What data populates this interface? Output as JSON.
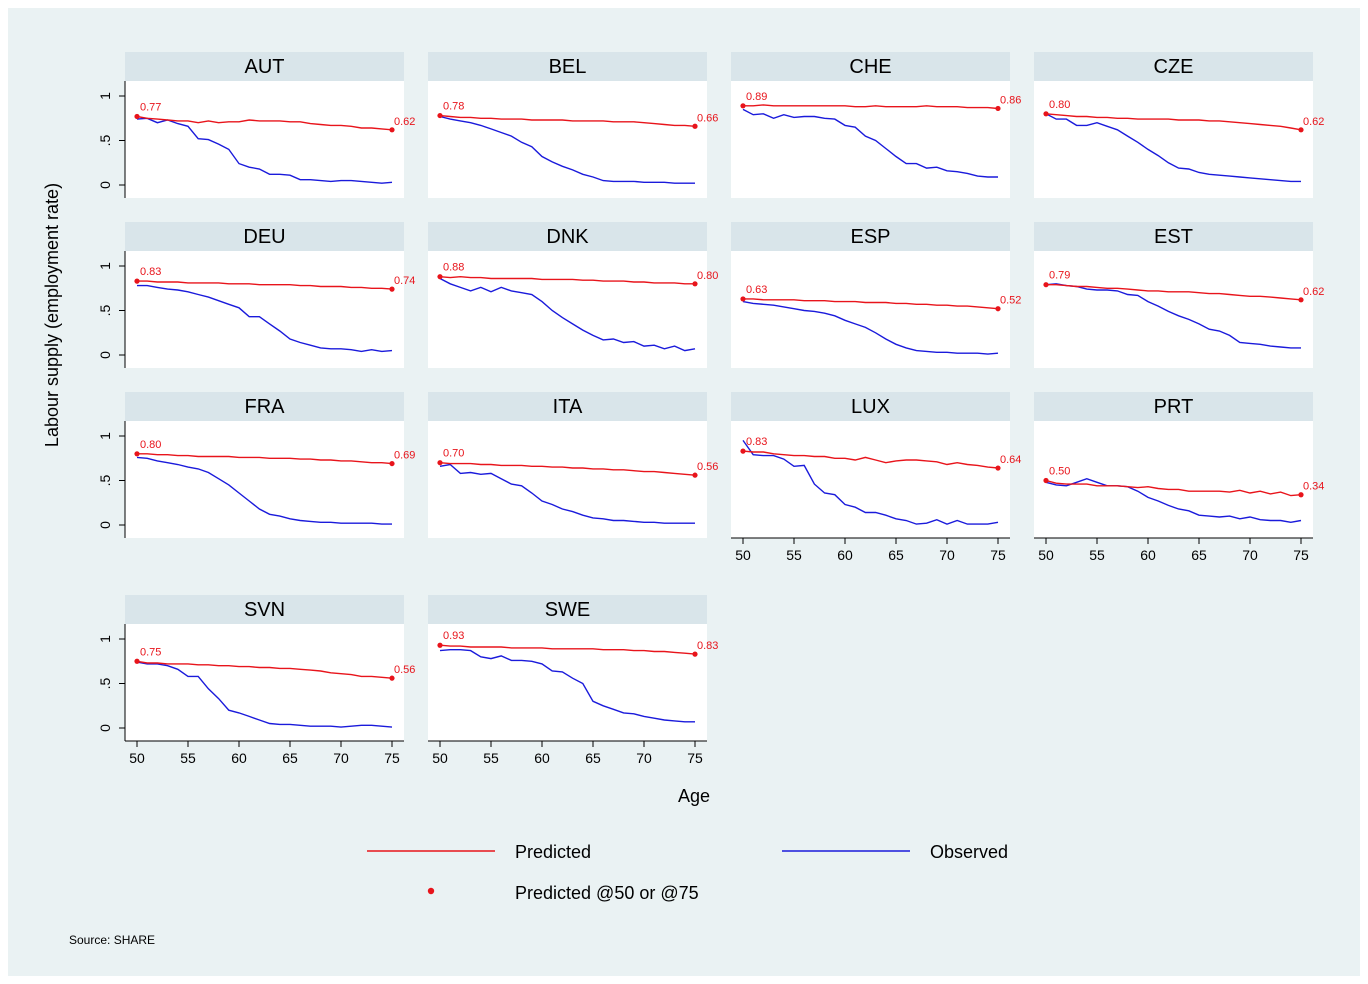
{
  "chart_data": {
    "type": "line",
    "ylabel": "Labour supply (employment rate)",
    "xlabel": "Age",
    "source_note": "Source: SHARE",
    "xlim": [
      50,
      75
    ],
    "ylim": [
      0,
      1
    ],
    "xticks": [
      50,
      55,
      60,
      65,
      70,
      75
    ],
    "yticks": [
      0,
      0.5,
      1
    ],
    "ytick_labels": [
      "0",
      ".5",
      "1"
    ],
    "grid": false,
    "legend": {
      "placement": "bottom",
      "entries": [
        {
          "label": "Predicted",
          "kind": "line",
          "color": "#e8141b"
        },
        {
          "label": "Observed",
          "kind": "line",
          "color": "#1a1adb"
        },
        {
          "label": "Predicted @50 or @75",
          "kind": "marker",
          "color": "#e8141b"
        }
      ]
    },
    "colors": {
      "predicted": "#e8141b",
      "observed": "#1a1adb",
      "strip": "#d9e5ea",
      "background": "#eaf2f3"
    },
    "x": [
      50,
      51,
      52,
      53,
      54,
      55,
      56,
      57,
      58,
      59,
      60,
      61,
      62,
      63,
      64,
      65,
      66,
      67,
      68,
      69,
      70,
      71,
      72,
      73,
      74,
      75
    ],
    "panels": [
      {
        "name": "AUT",
        "label50": "0.77",
        "label75": "0.62",
        "predicted": [
          0.77,
          0.75,
          0.74,
          0.73,
          0.72,
          0.72,
          0.7,
          0.72,
          0.7,
          0.71,
          0.71,
          0.73,
          0.72,
          0.72,
          0.72,
          0.71,
          0.71,
          0.69,
          0.68,
          0.67,
          0.67,
          0.66,
          0.64,
          0.64,
          0.63,
          0.62
        ],
        "observed": [
          0.74,
          0.75,
          0.7,
          0.73,
          0.69,
          0.66,
          0.52,
          0.51,
          0.46,
          0.4,
          0.24,
          0.2,
          0.18,
          0.12,
          0.12,
          0.11,
          0.06,
          0.06,
          0.05,
          0.04,
          0.05,
          0.05,
          0.04,
          0.03,
          0.02,
          0.03
        ]
      },
      {
        "name": "BEL",
        "label50": "0.78",
        "label75": "0.66",
        "predicted": [
          0.78,
          0.77,
          0.76,
          0.76,
          0.75,
          0.75,
          0.74,
          0.74,
          0.74,
          0.73,
          0.73,
          0.73,
          0.73,
          0.72,
          0.72,
          0.72,
          0.72,
          0.71,
          0.71,
          0.71,
          0.7,
          0.69,
          0.68,
          0.67,
          0.67,
          0.66
        ],
        "observed": [
          0.77,
          0.74,
          0.72,
          0.7,
          0.67,
          0.63,
          0.59,
          0.55,
          0.48,
          0.43,
          0.32,
          0.26,
          0.21,
          0.17,
          0.12,
          0.09,
          0.05,
          0.04,
          0.04,
          0.04,
          0.03,
          0.03,
          0.03,
          0.02,
          0.02,
          0.02
        ]
      },
      {
        "name": "CHE",
        "label50": "0.89",
        "label75": "0.86",
        "predicted": [
          0.89,
          0.89,
          0.9,
          0.89,
          0.89,
          0.89,
          0.89,
          0.89,
          0.89,
          0.89,
          0.89,
          0.88,
          0.88,
          0.89,
          0.88,
          0.88,
          0.88,
          0.88,
          0.89,
          0.88,
          0.88,
          0.88,
          0.87,
          0.87,
          0.87,
          0.86
        ],
        "observed": [
          0.85,
          0.79,
          0.8,
          0.75,
          0.79,
          0.76,
          0.77,
          0.77,
          0.75,
          0.74,
          0.67,
          0.65,
          0.55,
          0.5,
          0.41,
          0.32,
          0.24,
          0.24,
          0.19,
          0.2,
          0.16,
          0.15,
          0.13,
          0.1,
          0.09,
          0.09
        ]
      },
      {
        "name": "CZE",
        "label50": "0.80",
        "label75": "0.62",
        "predicted": [
          0.8,
          0.79,
          0.78,
          0.77,
          0.77,
          0.76,
          0.76,
          0.75,
          0.75,
          0.74,
          0.74,
          0.74,
          0.74,
          0.73,
          0.73,
          0.73,
          0.72,
          0.72,
          0.71,
          0.7,
          0.69,
          0.68,
          0.67,
          0.66,
          0.64,
          0.62
        ],
        "observed": [
          0.8,
          0.74,
          0.74,
          0.67,
          0.67,
          0.7,
          0.66,
          0.62,
          0.55,
          0.48,
          0.4,
          0.33,
          0.25,
          0.19,
          0.18,
          0.14,
          0.12,
          0.11,
          0.1,
          0.09,
          0.08,
          0.07,
          0.06,
          0.05,
          0.04,
          0.04
        ]
      },
      {
        "name": "DEU",
        "label50": "0.83",
        "label75": "0.74",
        "predicted": [
          0.83,
          0.83,
          0.82,
          0.82,
          0.82,
          0.81,
          0.81,
          0.81,
          0.81,
          0.8,
          0.8,
          0.8,
          0.79,
          0.79,
          0.79,
          0.79,
          0.78,
          0.78,
          0.77,
          0.77,
          0.77,
          0.76,
          0.76,
          0.75,
          0.75,
          0.74
        ],
        "observed": [
          0.78,
          0.78,
          0.76,
          0.74,
          0.73,
          0.71,
          0.68,
          0.65,
          0.61,
          0.57,
          0.53,
          0.43,
          0.43,
          0.35,
          0.27,
          0.18,
          0.14,
          0.11,
          0.08,
          0.07,
          0.07,
          0.06,
          0.04,
          0.06,
          0.04,
          0.05
        ]
      },
      {
        "name": "DNK",
        "label50": "0.88",
        "label75": "0.80",
        "predicted": [
          0.88,
          0.87,
          0.88,
          0.87,
          0.87,
          0.86,
          0.86,
          0.86,
          0.86,
          0.86,
          0.85,
          0.85,
          0.85,
          0.85,
          0.84,
          0.84,
          0.83,
          0.83,
          0.83,
          0.82,
          0.82,
          0.81,
          0.81,
          0.81,
          0.8,
          0.8
        ],
        "observed": [
          0.86,
          0.8,
          0.76,
          0.72,
          0.76,
          0.71,
          0.76,
          0.72,
          0.7,
          0.68,
          0.6,
          0.5,
          0.42,
          0.35,
          0.28,
          0.22,
          0.17,
          0.18,
          0.14,
          0.15,
          0.1,
          0.11,
          0.07,
          0.1,
          0.05,
          0.07
        ]
      },
      {
        "name": "ESP",
        "label50": "0.63",
        "label75": "0.52",
        "predicted": [
          0.63,
          0.63,
          0.62,
          0.62,
          0.62,
          0.62,
          0.61,
          0.61,
          0.61,
          0.6,
          0.6,
          0.6,
          0.59,
          0.59,
          0.59,
          0.58,
          0.58,
          0.57,
          0.57,
          0.56,
          0.56,
          0.55,
          0.55,
          0.54,
          0.53,
          0.52
        ],
        "observed": [
          0.6,
          0.58,
          0.57,
          0.56,
          0.54,
          0.52,
          0.5,
          0.49,
          0.47,
          0.44,
          0.39,
          0.35,
          0.31,
          0.25,
          0.18,
          0.12,
          0.08,
          0.05,
          0.04,
          0.03,
          0.03,
          0.02,
          0.02,
          0.02,
          0.01,
          0.02
        ]
      },
      {
        "name": "EST",
        "label50": "0.79",
        "label75": "0.62",
        "predicted": [
          0.79,
          0.79,
          0.78,
          0.77,
          0.77,
          0.76,
          0.75,
          0.75,
          0.74,
          0.73,
          0.72,
          0.72,
          0.71,
          0.71,
          0.71,
          0.7,
          0.69,
          0.69,
          0.68,
          0.67,
          0.66,
          0.66,
          0.65,
          0.64,
          0.63,
          0.62
        ],
        "observed": [
          0.79,
          0.8,
          0.78,
          0.77,
          0.74,
          0.73,
          0.73,
          0.72,
          0.68,
          0.67,
          0.6,
          0.55,
          0.49,
          0.44,
          0.4,
          0.35,
          0.29,
          0.27,
          0.22,
          0.14,
          0.13,
          0.12,
          0.1,
          0.09,
          0.08,
          0.08
        ]
      },
      {
        "name": "FRA",
        "label50": "0.80",
        "label75": "0.69",
        "predicted": [
          0.8,
          0.8,
          0.79,
          0.79,
          0.78,
          0.78,
          0.77,
          0.77,
          0.77,
          0.77,
          0.76,
          0.76,
          0.76,
          0.75,
          0.75,
          0.75,
          0.74,
          0.74,
          0.73,
          0.73,
          0.72,
          0.72,
          0.71,
          0.7,
          0.7,
          0.69
        ],
        "observed": [
          0.76,
          0.75,
          0.72,
          0.7,
          0.68,
          0.65,
          0.63,
          0.59,
          0.52,
          0.45,
          0.36,
          0.27,
          0.18,
          0.12,
          0.1,
          0.07,
          0.05,
          0.04,
          0.03,
          0.03,
          0.02,
          0.02,
          0.02,
          0.02,
          0.01,
          0.01
        ]
      },
      {
        "name": "ITA",
        "label50": "0.70",
        "label75": "0.56",
        "predicted": [
          0.7,
          0.69,
          0.69,
          0.69,
          0.68,
          0.68,
          0.67,
          0.67,
          0.67,
          0.66,
          0.66,
          0.65,
          0.65,
          0.64,
          0.64,
          0.63,
          0.63,
          0.62,
          0.62,
          0.61,
          0.6,
          0.6,
          0.59,
          0.58,
          0.57,
          0.56
        ],
        "observed": [
          0.66,
          0.68,
          0.58,
          0.59,
          0.57,
          0.58,
          0.52,
          0.46,
          0.44,
          0.36,
          0.27,
          0.23,
          0.18,
          0.15,
          0.11,
          0.08,
          0.07,
          0.05,
          0.05,
          0.04,
          0.03,
          0.03,
          0.02,
          0.02,
          0.02,
          0.02
        ]
      },
      {
        "name": "LUX",
        "label50": "0.83",
        "label75": "0.64",
        "predicted": [
          0.83,
          0.82,
          0.82,
          0.8,
          0.79,
          0.78,
          0.78,
          0.77,
          0.77,
          0.75,
          0.75,
          0.73,
          0.76,
          0.73,
          0.7,
          0.72,
          0.73,
          0.73,
          0.72,
          0.71,
          0.68,
          0.7,
          0.68,
          0.67,
          0.65,
          0.64
        ],
        "observed": [
          0.95,
          0.79,
          0.78,
          0.78,
          0.74,
          0.66,
          0.67,
          0.46,
          0.36,
          0.34,
          0.23,
          0.2,
          0.14,
          0.14,
          0.11,
          0.07,
          0.05,
          0.01,
          0.02,
          0.06,
          0.01,
          0.05,
          0.01,
          0.01,
          0.01,
          0.03
        ]
      },
      {
        "name": "PRT",
        "label50": "0.50",
        "label75": "0.34",
        "predicted": [
          0.5,
          0.47,
          0.46,
          0.46,
          0.46,
          0.44,
          0.44,
          0.44,
          0.43,
          0.42,
          0.43,
          0.41,
          0.4,
          0.4,
          0.38,
          0.38,
          0.38,
          0.38,
          0.37,
          0.39,
          0.36,
          0.38,
          0.35,
          0.37,
          0.33,
          0.34
        ],
        "observed": [
          0.48,
          0.45,
          0.44,
          0.48,
          0.52,
          0.48,
          0.44,
          0.44,
          0.43,
          0.38,
          0.31,
          0.27,
          0.22,
          0.18,
          0.16,
          0.11,
          0.1,
          0.09,
          0.1,
          0.07,
          0.09,
          0.06,
          0.05,
          0.05,
          0.03,
          0.05
        ]
      },
      {
        "name": "SVN",
        "label50": "0.75",
        "label75": "0.56",
        "predicted": [
          0.75,
          0.73,
          0.73,
          0.72,
          0.72,
          0.72,
          0.71,
          0.71,
          0.7,
          0.7,
          0.69,
          0.69,
          0.68,
          0.68,
          0.67,
          0.67,
          0.66,
          0.65,
          0.64,
          0.62,
          0.61,
          0.6,
          0.58,
          0.58,
          0.57,
          0.56
        ],
        "observed": [
          0.74,
          0.72,
          0.72,
          0.7,
          0.66,
          0.58,
          0.58,
          0.44,
          0.33,
          0.2,
          0.17,
          0.13,
          0.09,
          0.05,
          0.04,
          0.04,
          0.03,
          0.02,
          0.02,
          0.02,
          0.01,
          0.02,
          0.03,
          0.03,
          0.02,
          0.01
        ]
      },
      {
        "name": "SWE",
        "label50": "0.93",
        "label75": "0.83",
        "predicted": [
          0.93,
          0.92,
          0.92,
          0.91,
          0.91,
          0.91,
          0.91,
          0.9,
          0.9,
          0.9,
          0.9,
          0.89,
          0.89,
          0.89,
          0.89,
          0.89,
          0.88,
          0.88,
          0.88,
          0.87,
          0.87,
          0.86,
          0.86,
          0.85,
          0.84,
          0.83
        ],
        "observed": [
          0.87,
          0.88,
          0.88,
          0.87,
          0.8,
          0.78,
          0.81,
          0.76,
          0.76,
          0.75,
          0.72,
          0.64,
          0.63,
          0.56,
          0.5,
          0.3,
          0.25,
          0.21,
          0.17,
          0.16,
          0.13,
          0.11,
          0.09,
          0.08,
          0.07,
          0.07
        ]
      }
    ]
  }
}
